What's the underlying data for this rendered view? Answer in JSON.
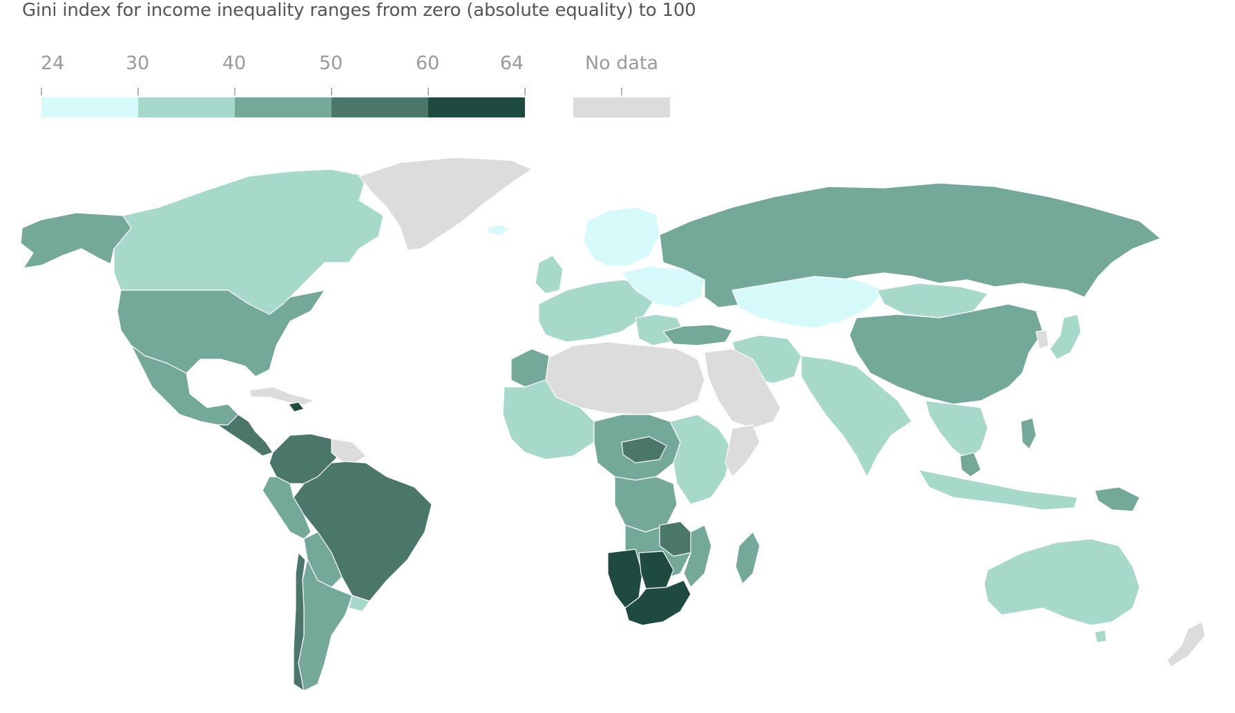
{
  "subtitle": "Gini index for income inequality ranges from zero (absolute equality) to 100",
  "legend": {
    "ticks": [
      "24",
      "30",
      "40",
      "50",
      "60",
      "64"
    ],
    "no_data_label": "No data",
    "bins": [
      {
        "range": "24–30",
        "color": "#d6fafa"
      },
      {
        "range": "30–40",
        "color": "#a6d9c9"
      },
      {
        "range": "40–50",
        "color": "#74a898"
      },
      {
        "range": "50–60",
        "color": "#4a7769"
      },
      {
        "range": "60–64",
        "color": "#1f4a40"
      }
    ],
    "no_data_color": "#dcdcdc"
  },
  "colors": {
    "c1": "#d6fafa",
    "c2": "#a6d9c9",
    "c3": "#74a898",
    "c4": "#4a7769",
    "c5": "#1f4a40",
    "nodata": "#dcdcdc"
  }
}
